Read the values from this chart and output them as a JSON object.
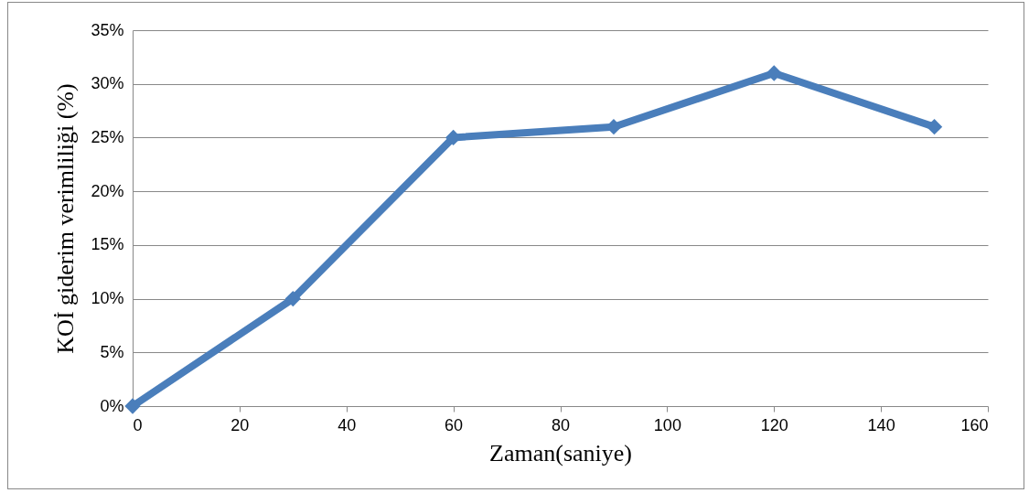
{
  "chart_data": {
    "type": "line",
    "xlabel": "Zaman(saniye)",
    "ylabel": "KOİ giderim verimliliği (%)",
    "x": [
      0,
      30,
      60,
      90,
      120,
      150
    ],
    "series": [
      {
        "color": "#4a7ebb",
        "values": [
          0,
          10,
          25,
          26,
          31,
          26
        ]
      }
    ],
    "xlim": [
      0,
      160
    ],
    "xticks": [
      0,
      20,
      40,
      60,
      80,
      100,
      120,
      140,
      160
    ],
    "ylim": [
      0,
      35
    ],
    "yticks": [
      {
        "value": 0,
        "label": "0%"
      },
      {
        "value": 5,
        "label": "5%"
      },
      {
        "value": 10,
        "label": "10%"
      },
      {
        "value": 15,
        "label": "15%"
      },
      {
        "value": 20,
        "label": "20%"
      },
      {
        "value": 25,
        "label": "25%"
      },
      {
        "value": 30,
        "label": "30%"
      },
      {
        "value": 35,
        "label": "35%"
      }
    ],
    "grid": "y",
    "marker": "diamond",
    "line_style": "solid"
  }
}
